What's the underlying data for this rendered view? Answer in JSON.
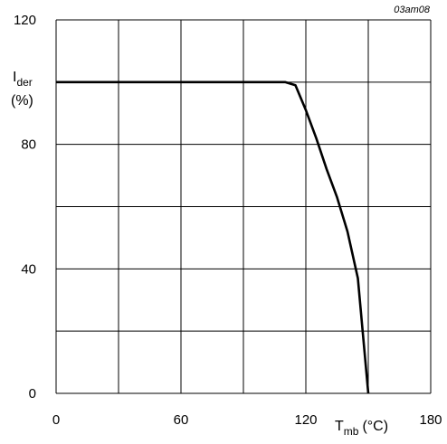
{
  "figure_ref": "03am08",
  "chart_data": {
    "type": "line",
    "title": "",
    "ylabel": {
      "main": "I",
      "sub": "der",
      "unit": "(%)"
    },
    "xlabel": {
      "main": "T",
      "sub": "mb",
      "unit": "(°C)"
    },
    "xlim": [
      0,
      180
    ],
    "ylim": [
      0,
      120
    ],
    "x_ticks": [
      0,
      60,
      120,
      180
    ],
    "y_ticks": [
      0,
      40,
      80,
      120
    ],
    "x_grid_step": 30,
    "y_grid_step": 20,
    "grid": true,
    "series": [
      {
        "points": [
          [
            0,
            100
          ],
          [
            110,
            100
          ],
          [
            115,
            99
          ],
          [
            120,
            91
          ],
          [
            125,
            82
          ],
          [
            130,
            72
          ],
          [
            135,
            63
          ],
          [
            140,
            52
          ],
          [
            145,
            37
          ],
          [
            150,
            0
          ]
        ]
      }
    ]
  }
}
